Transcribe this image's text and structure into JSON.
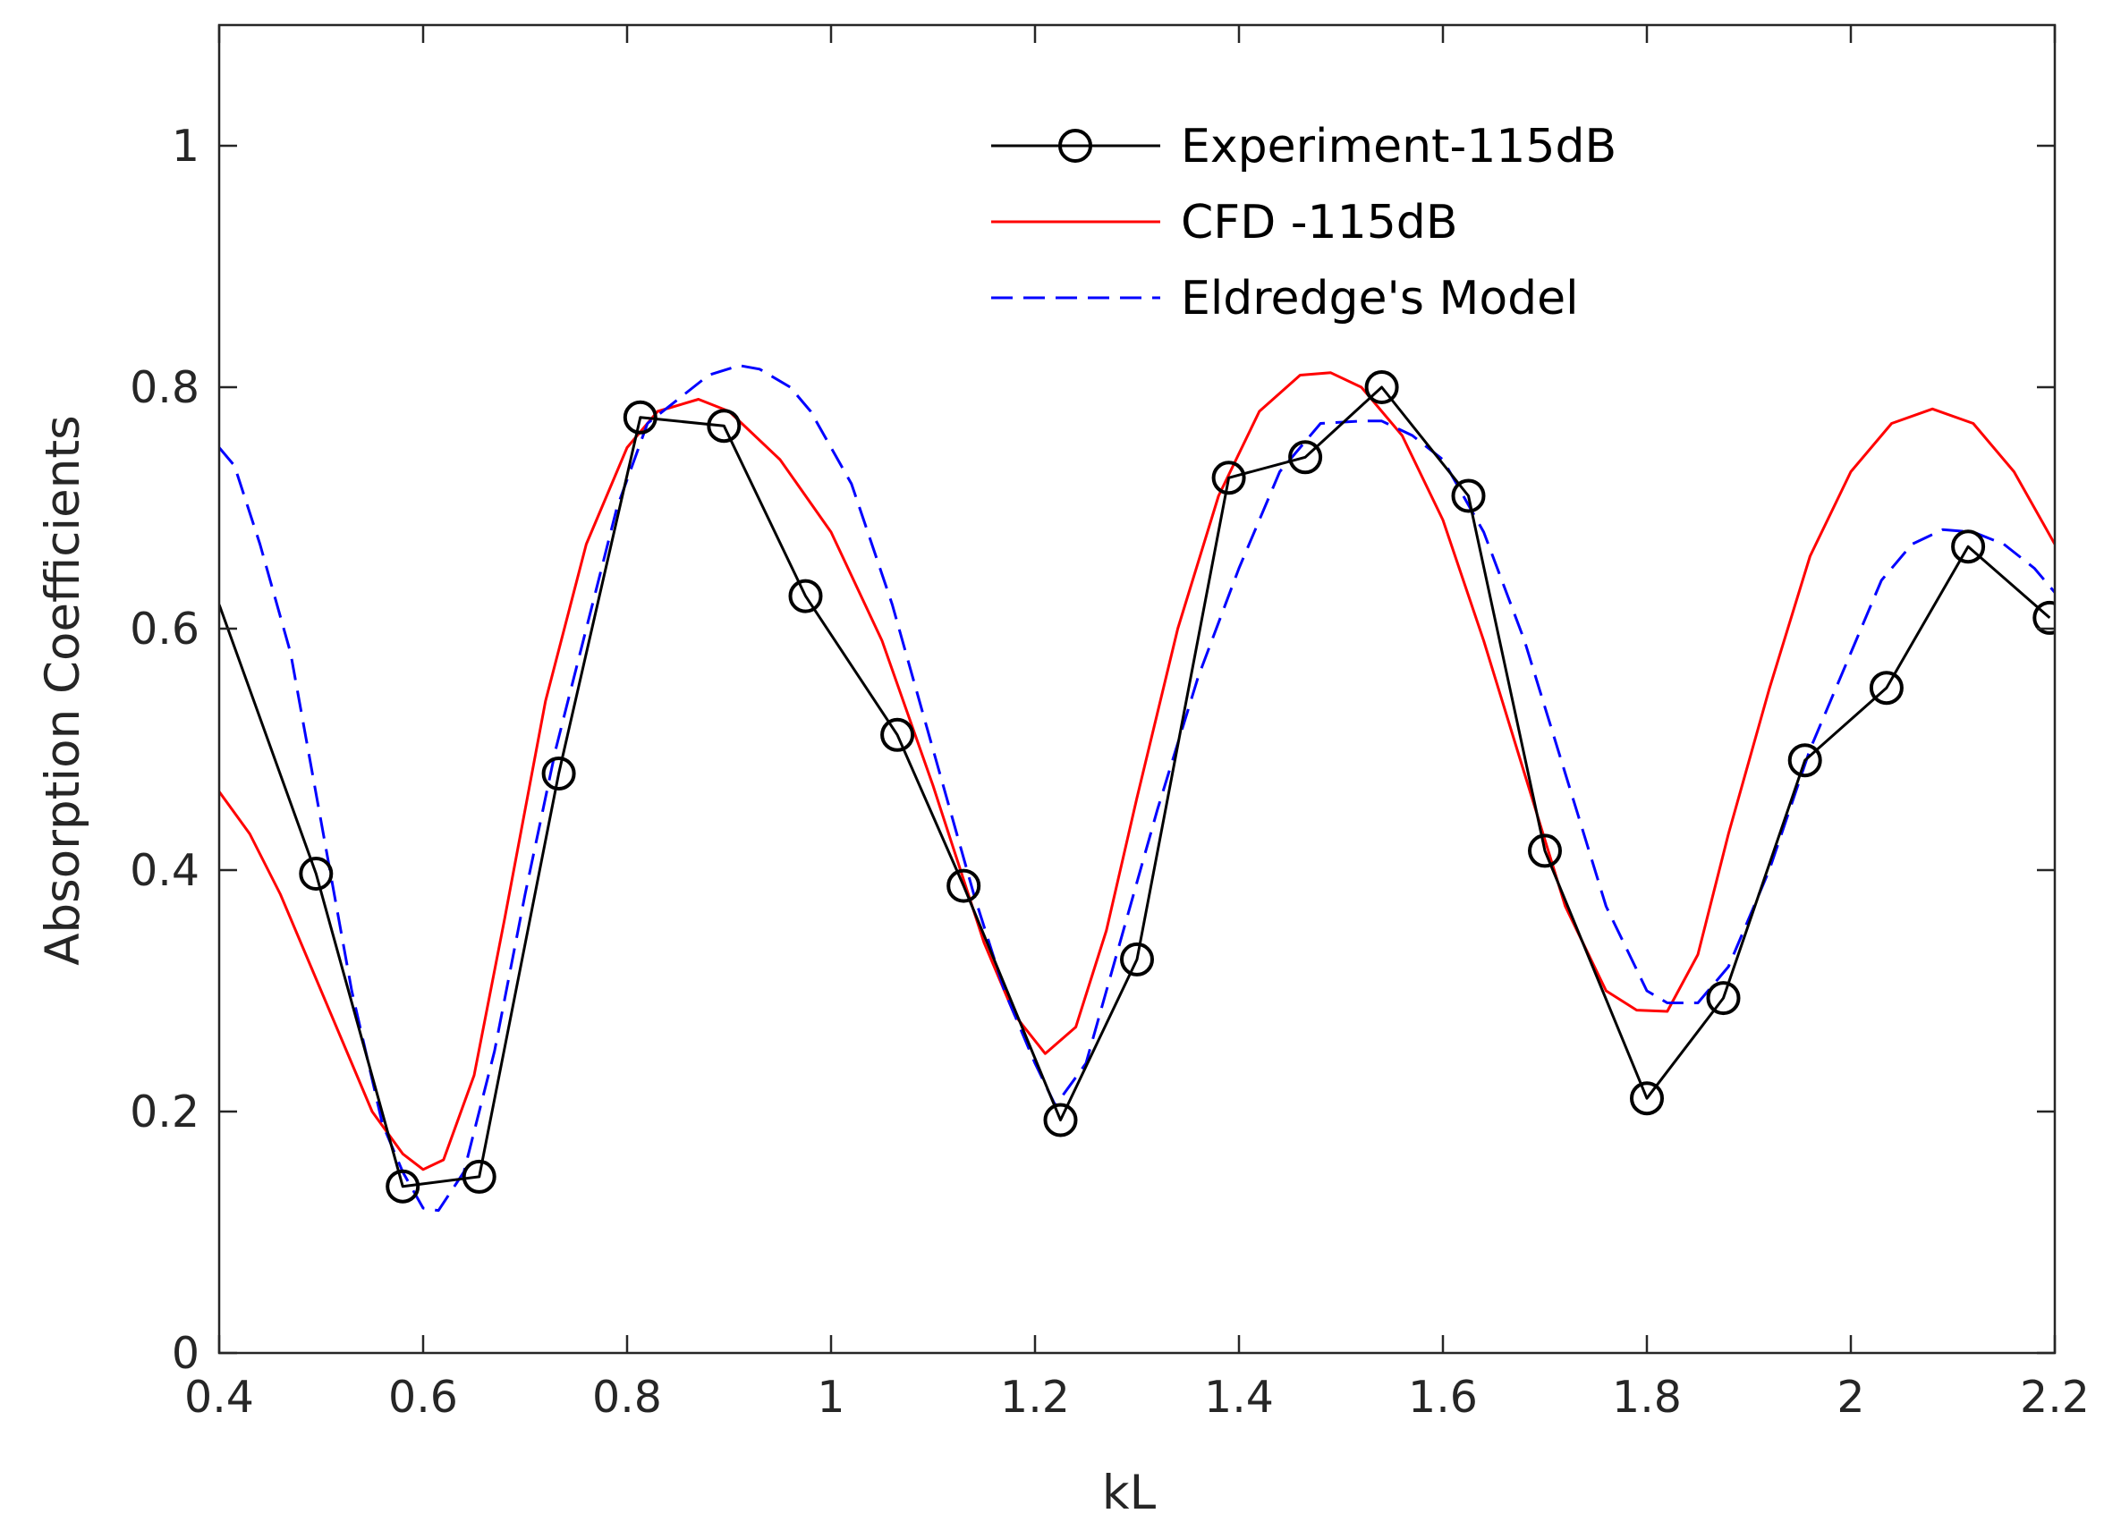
{
  "chart_data": {
    "type": "line",
    "title": "",
    "xlabel": "kL",
    "ylabel": "Absorption Coefficients",
    "xlim": [
      0.4,
      2.2
    ],
    "ylim": [
      0,
      1.1
    ],
    "xticks": [
      0.4,
      0.6,
      0.8,
      1,
      1.2,
      1.4,
      1.6,
      1.8,
      2,
      2.2
    ],
    "xtick_labels": [
      "0.4",
      "0.6",
      "0.8",
      "1",
      "1.2",
      "1.4",
      "1.6",
      "1.8",
      "2",
      "2.2"
    ],
    "yticks": [
      0,
      0.2,
      0.4,
      0.6,
      0.8,
      1
    ],
    "ytick_labels": [
      "0",
      "0.2",
      "0.4",
      "0.6",
      "0.8",
      "1"
    ],
    "grid": false,
    "legend_position": "top-right",
    "series": [
      {
        "name": "Experiment-115dB",
        "color": "#000000",
        "style": "solid-circle-markers",
        "x": [
          0.4,
          0.495,
          0.58,
          0.655,
          0.733,
          0.813,
          0.895,
          0.975,
          1.065,
          1.13,
          1.225,
          1.3,
          1.39,
          1.465,
          1.54,
          1.625,
          1.7,
          1.8,
          1.875,
          1.955,
          2.035,
          2.115,
          2.195
        ],
        "y": [
          0.62,
          0.397,
          0.138,
          0.146,
          0.48,
          0.775,
          0.768,
          0.627,
          0.512,
          0.387,
          0.193,
          0.326,
          0.725,
          0.742,
          0.8,
          0.71,
          0.416,
          0.211,
          0.294,
          0.491,
          0.551,
          0.668,
          0.609
        ],
        "markers": [
          false,
          true,
          true,
          true,
          true,
          true,
          true,
          true,
          true,
          true,
          true,
          true,
          true,
          true,
          true,
          true,
          true,
          true,
          true,
          true,
          true,
          true,
          true
        ]
      },
      {
        "name": "CFD -115dB",
        "color": "#ff0000",
        "style": "solid",
        "x": [
          0.4,
          0.43,
          0.46,
          0.49,
          0.52,
          0.55,
          0.58,
          0.6,
          0.62,
          0.65,
          0.68,
          0.72,
          0.76,
          0.8,
          0.83,
          0.87,
          0.9,
          0.95,
          1.0,
          1.05,
          1.1,
          1.15,
          1.18,
          1.21,
          1.24,
          1.27,
          1.3,
          1.34,
          1.38,
          1.42,
          1.46,
          1.49,
          1.52,
          1.56,
          1.6,
          1.64,
          1.68,
          1.72,
          1.76,
          1.79,
          1.82,
          1.85,
          1.88,
          1.92,
          1.96,
          2.0,
          2.04,
          2.08,
          2.12,
          2.16,
          2.2
        ],
        "y": [
          0.465,
          0.43,
          0.38,
          0.32,
          0.26,
          0.2,
          0.165,
          0.152,
          0.16,
          0.23,
          0.36,
          0.54,
          0.67,
          0.75,
          0.78,
          0.79,
          0.78,
          0.74,
          0.68,
          0.59,
          0.47,
          0.34,
          0.28,
          0.248,
          0.27,
          0.35,
          0.46,
          0.6,
          0.71,
          0.78,
          0.81,
          0.812,
          0.8,
          0.76,
          0.69,
          0.59,
          0.48,
          0.37,
          0.3,
          0.284,
          0.283,
          0.33,
          0.43,
          0.55,
          0.66,
          0.73,
          0.77,
          0.782,
          0.77,
          0.73,
          0.67
        ]
      },
      {
        "name": "Eldredge's Model",
        "color": "#0000ff",
        "style": "dashed",
        "x": [
          0.4,
          0.415,
          0.44,
          0.47,
          0.5,
          0.53,
          0.56,
          0.58,
          0.6,
          0.615,
          0.64,
          0.67,
          0.7,
          0.73,
          0.76,
          0.79,
          0.82,
          0.85,
          0.88,
          0.91,
          0.93,
          0.96,
          0.98,
          1.02,
          1.06,
          1.1,
          1.14,
          1.17,
          1.2,
          1.22,
          1.25,
          1.28,
          1.32,
          1.36,
          1.4,
          1.44,
          1.48,
          1.52,
          1.54,
          1.57,
          1.6,
          1.64,
          1.68,
          1.72,
          1.76,
          1.8,
          1.82,
          1.85,
          1.88,
          1.92,
          1.96,
          2.0,
          2.03,
          2.06,
          2.09,
          2.12,
          2.15,
          2.18,
          2.2
        ],
        "y": [
          0.75,
          0.735,
          0.67,
          0.58,
          0.44,
          0.3,
          0.19,
          0.15,
          0.12,
          0.118,
          0.15,
          0.25,
          0.38,
          0.5,
          0.6,
          0.7,
          0.77,
          0.79,
          0.81,
          0.818,
          0.815,
          0.8,
          0.78,
          0.72,
          0.62,
          0.5,
          0.38,
          0.3,
          0.24,
          0.205,
          0.24,
          0.33,
          0.45,
          0.56,
          0.65,
          0.73,
          0.77,
          0.772,
          0.772,
          0.76,
          0.74,
          0.68,
          0.59,
          0.48,
          0.37,
          0.3,
          0.29,
          0.29,
          0.32,
          0.4,
          0.5,
          0.58,
          0.64,
          0.67,
          0.682,
          0.68,
          0.67,
          0.65,
          0.63
        ]
      }
    ]
  }
}
